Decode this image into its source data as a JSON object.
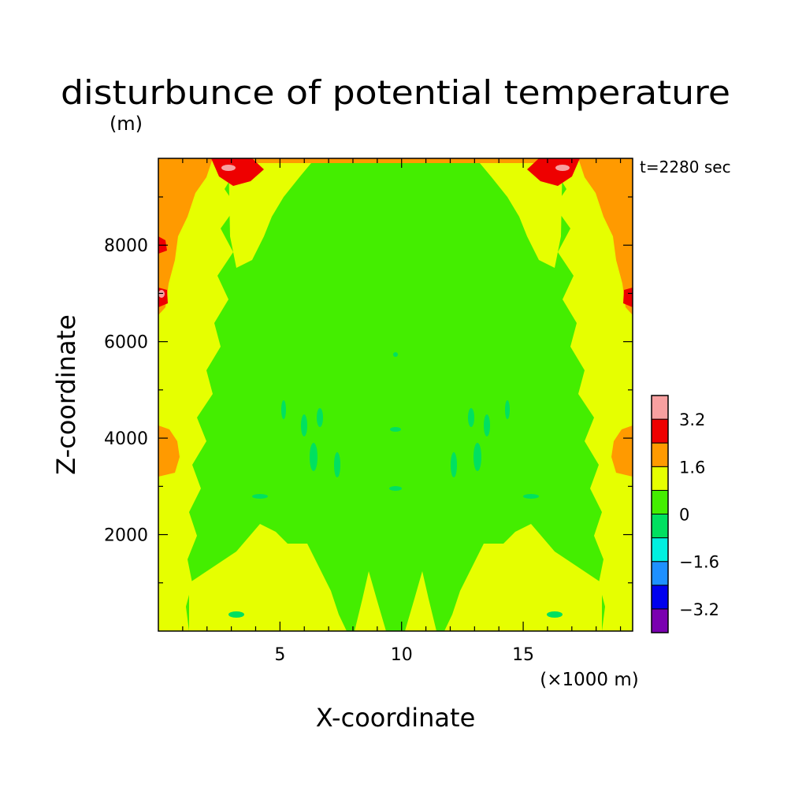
{
  "chart_data": {
    "type": "heatmap",
    "title": "disturbunce of potential temperature",
    "ylabel": "Z-coordinate",
    "yunit": "(m)",
    "xlabel": "X-coordinate",
    "xunit": "(×1000 m)",
    "time_label": "t=2280 sec",
    "xlim": [
      0,
      19.5
    ],
    "ylim": [
      0,
      9800
    ],
    "x_ticks": [
      5,
      10,
      15
    ],
    "y_ticks": [
      2000,
      4000,
      6000,
      8000
    ],
    "colorbar": {
      "levels": [
        -4,
        -3.2,
        -2.4,
        -1.6,
        -0.8,
        0,
        0.8,
        1.6,
        2.4,
        3.2,
        4.0
      ],
      "colors": [
        "#7a00b0",
        "#0000ee",
        "#1e90ff",
        "#00f0e0",
        "#00e060",
        "#44ee00",
        "#e6ff00",
        "#ff9a00",
        "#ee0000",
        "#f7a0a0"
      ],
      "tick_labels": [
        "3.2",
        "1.6",
        "0",
        "-1.6",
        "-3.2"
      ]
    },
    "field_zones": [
      {
        "x": [
          0,
          2.0
        ],
        "y": [
          0,
          9800
        ],
        "value": 1.2
      },
      {
        "x": [
          0,
          0.8
        ],
        "y": [
          6500,
          9800
        ],
        "value": 2.0
      },
      {
        "x": [
          0,
          0.3
        ],
        "y": [
          3500,
          4400
        ],
        "value": 2.0
      },
      {
        "x": [
          2.0,
          17.5
        ],
        "y": [
          0,
          9800
        ],
        "value": 0.4
      },
      {
        "x": [
          17.5,
          19.5
        ],
        "y": [
          0,
          9800
        ],
        "value": 1.2
      },
      {
        "x": [
          18.7,
          19.5
        ],
        "y": [
          6500,
          9800
        ],
        "value": 2.0
      }
    ]
  }
}
